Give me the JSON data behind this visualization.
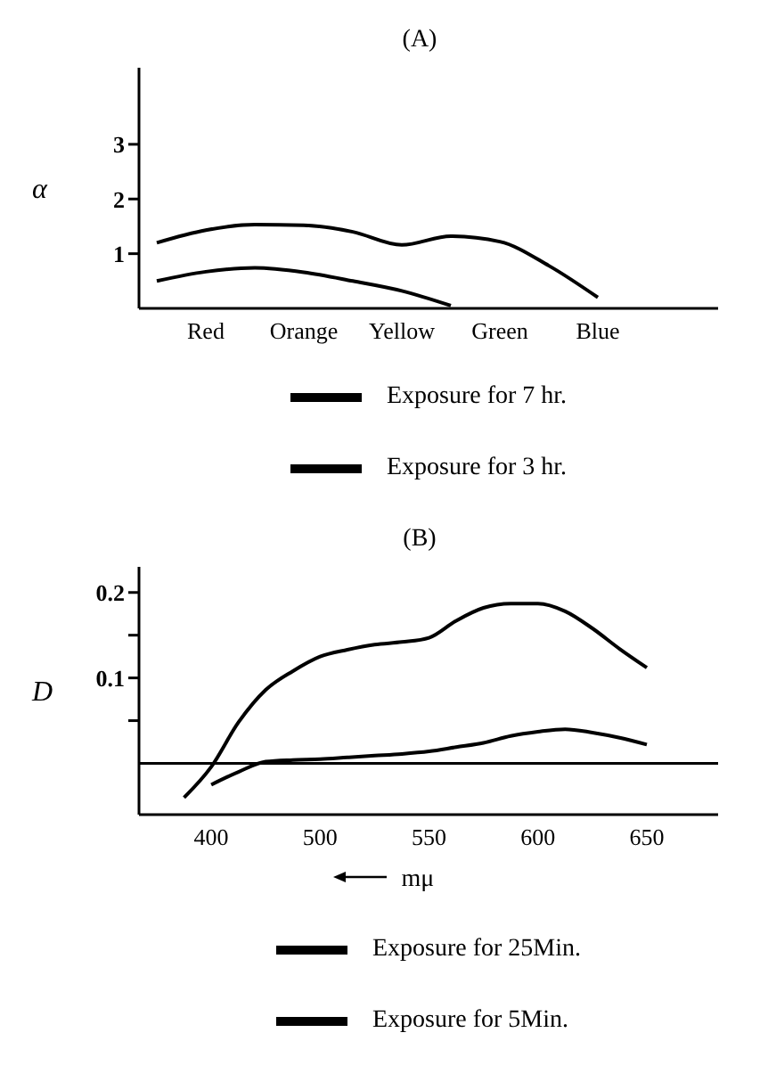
{
  "chart_data": [
    {
      "type": "line",
      "title": "(A)",
      "ylabel": "α",
      "categories": [
        null,
        "Red",
        null,
        "Orange",
        null,
        "Yellow",
        null,
        "Green",
        null,
        "Blue",
        null
      ],
      "series": [
        {
          "name": "Exposure for 7 hr.",
          "color": "#000000",
          "values": [
            1.2,
            1.43,
            1.53,
            1.52,
            1.4,
            1.16,
            1.32,
            1.22,
            0.78,
            0.2,
            null
          ]
        },
        {
          "name": "Exposure for 3 hr.",
          "color": "#000000",
          "values": [
            0.5,
            0.67,
            0.74,
            0.66,
            0.5,
            0.32,
            0.05,
            null,
            null,
            null,
            null
          ]
        }
      ],
      "ylim": [
        0,
        4.4
      ],
      "yticks": [
        1,
        2,
        3
      ],
      "legend": "bottom",
      "marker": "none",
      "line_style": "solid",
      "grid": false
    },
    {
      "type": "line",
      "title": "(B)",
      "ylabel": "D",
      "xlabel": "mμ",
      "categories": [
        null,
        null,
        "400",
        null,
        null,
        null,
        "500",
        null,
        null,
        null,
        "550",
        null,
        null,
        null,
        "600",
        null,
        null,
        null,
        "650"
      ],
      "ylim": [
        -0.06,
        0.23
      ],
      "yticks": [
        {
          "value": 0.05,
          "label": null
        },
        0.1,
        {
          "value": 0.15,
          "label": null
        },
        0.2
      ],
      "ref_lines": [
        {
          "axis": "y",
          "value": 0
        }
      ],
      "series": [
        {
          "name": "Exposure for 25Min.",
          "color": "#000000",
          "values": [
            null,
            -0.04,
            -0.004,
            0.048,
            0.086,
            0.108,
            0.125,
            0.133,
            0.139,
            0.142,
            0.147,
            0.167,
            0.182,
            0.187,
            0.187,
            0.178,
            0.158,
            0.134,
            0.112
          ]
        },
        {
          "name": "Exposure for 5Min.",
          "color": "#000000",
          "values": [
            null,
            null,
            -0.025,
            -0.01,
            0.002,
            0.004,
            0.005,
            0.007,
            0.009,
            0.011,
            0.014,
            0.019,
            0.024,
            0.032,
            0.037,
            0.04,
            0.036,
            0.03,
            0.022
          ]
        }
      ],
      "legend": "bottom",
      "marker": "none",
      "line_style": "solid",
      "grid": false
    }
  ]
}
